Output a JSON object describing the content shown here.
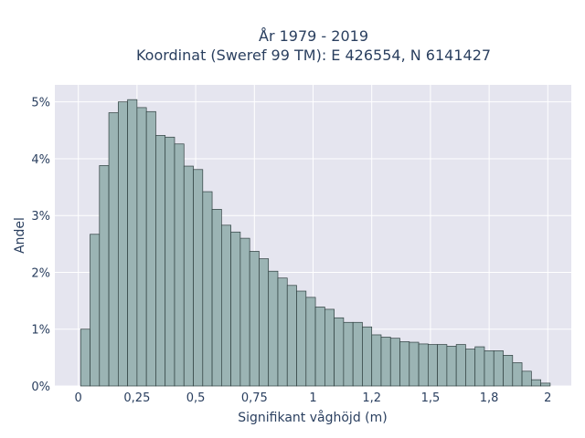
{
  "chart_data": {
    "type": "bar",
    "title_lines": [
      "År 1979 - 2019",
      "Koordinat (Sweref 99 TM): E 426554, N 6141427"
    ],
    "xlabel": "Signifikant våghöjd (m)",
    "ylabel": "Andel",
    "xlim": [
      -0.1,
      2.1
    ],
    "ylim": [
      0,
      5.3
    ],
    "x_ticks": [
      {
        "value": 0,
        "label": "0"
      },
      {
        "value": 0.25,
        "label": "0,25"
      },
      {
        "value": 0.5,
        "label": "0,5"
      },
      {
        "value": 0.75,
        "label": "0,75"
      },
      {
        "value": 1,
        "label": "1"
      },
      {
        "value": 1.25,
        "label": "1,2"
      },
      {
        "value": 1.5,
        "label": "1,5"
      },
      {
        "value": 1.75,
        "label": "1,8"
      },
      {
        "value": 2,
        "label": "2"
      }
    ],
    "y_ticks": [
      {
        "value": 0,
        "label": "0%"
      },
      {
        "value": 1,
        "label": "1%"
      },
      {
        "value": 2,
        "label": "2%"
      },
      {
        "value": 3,
        "label": "3%"
      },
      {
        "value": 4,
        "label": "4%"
      },
      {
        "value": 5,
        "label": "5%"
      }
    ],
    "bin_width": 0.04,
    "bin_start": 0.01,
    "values": [
      1.0,
      2.67,
      3.88,
      4.81,
      5.0,
      5.04,
      4.9,
      4.83,
      4.41,
      4.38,
      4.26,
      3.87,
      3.81,
      3.42,
      3.11,
      2.83,
      2.71,
      2.6,
      2.37,
      2.24,
      2.02,
      1.9,
      1.77,
      1.67,
      1.56,
      1.39,
      1.35,
      1.2,
      1.12,
      1.12,
      1.04,
      0.9,
      0.86,
      0.84,
      0.78,
      0.77,
      0.74,
      0.73,
      0.73,
      0.7,
      0.73,
      0.65,
      0.69,
      0.62,
      0.62,
      0.54,
      0.41,
      0.26,
      0.11,
      0.05
    ],
    "bar_color": "#9bb4b4",
    "bar_edge_color": "#2f3f3f",
    "plot_bg": "#e5e5ef",
    "grid": true
  }
}
